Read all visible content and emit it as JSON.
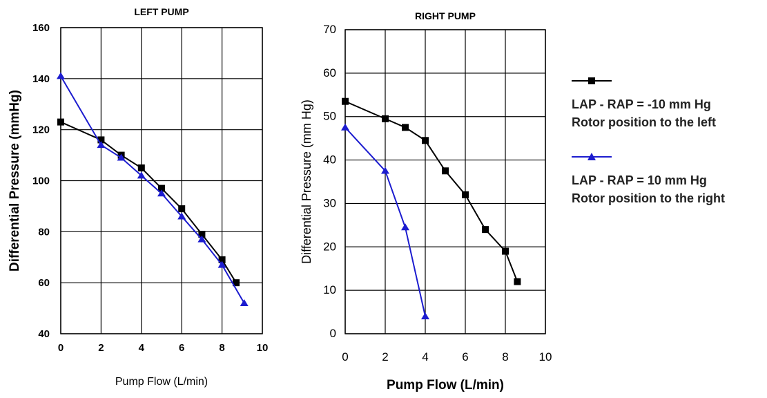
{
  "colors": {
    "series_a": "#000000",
    "series_b": "#1c1ccf",
    "grid": "#000000"
  },
  "chart_data": [
    {
      "type": "line",
      "title": "LEFT PUMP",
      "xlabel": "Pump Flow (L/min)",
      "ylabel": "Differential Pressure (mmHg)",
      "xlim": [
        0,
        10
      ],
      "ylim": [
        40,
        160
      ],
      "xticks": [
        "0",
        "2",
        "4",
        "6",
        "8",
        "10"
      ],
      "yticks": [
        "40",
        "60",
        "80",
        "100",
        "120",
        "140",
        "160"
      ],
      "grid": true,
      "series": [
        {
          "marker": "square",
          "color": "#000000",
          "x": [
            0,
            2,
            3,
            4,
            5,
            6,
            7,
            8,
            8.7
          ],
          "y": [
            123,
            116,
            110,
            105,
            97,
            89,
            79,
            69,
            60
          ]
        },
        {
          "marker": "triangle",
          "color": "#1c1ccf",
          "x": [
            0,
            2,
            3,
            4,
            5,
            6,
            7,
            8,
            9.1
          ],
          "y": [
            141,
            114,
            109,
            102,
            95,
            86,
            77,
            67,
            52
          ]
        }
      ]
    },
    {
      "type": "line",
      "title": "RIGHT PUMP",
      "xlabel": "Pump Flow (L/min)",
      "ylabel": "Differential Pressure (mm Hg)",
      "xlim": [
        0,
        10
      ],
      "ylim": [
        0,
        70
      ],
      "xticks": [
        "0",
        "2",
        "4",
        "6",
        "8",
        "10"
      ],
      "yticks": [
        "0",
        "10",
        "20",
        "30",
        "40",
        "50",
        "60",
        "70"
      ],
      "grid": true,
      "series": [
        {
          "marker": "square",
          "color": "#000000",
          "x": [
            0,
            2,
            3,
            4,
            5,
            6,
            7,
            8,
            8.6
          ],
          "y": [
            53.5,
            49.5,
            47.5,
            44.5,
            37.5,
            32,
            24,
            19,
            12
          ]
        },
        {
          "marker": "triangle",
          "color": "#1c1ccf",
          "x": [
            0,
            2,
            3,
            4
          ],
          "y": [
            47.5,
            37.5,
            24.5,
            4
          ]
        }
      ]
    }
  ],
  "legend": {
    "placement": "right",
    "entries": [
      {
        "marker": "square",
        "color": "#000000",
        "line1": "LAP - RAP = -10 mm Hg",
        "line2": "Rotor position to the left"
      },
      {
        "marker": "triangle",
        "color": "#1c1ccf",
        "line1": "LAP - RAP = 10 mm Hg",
        "line2": "Rotor position to the right"
      }
    ]
  }
}
